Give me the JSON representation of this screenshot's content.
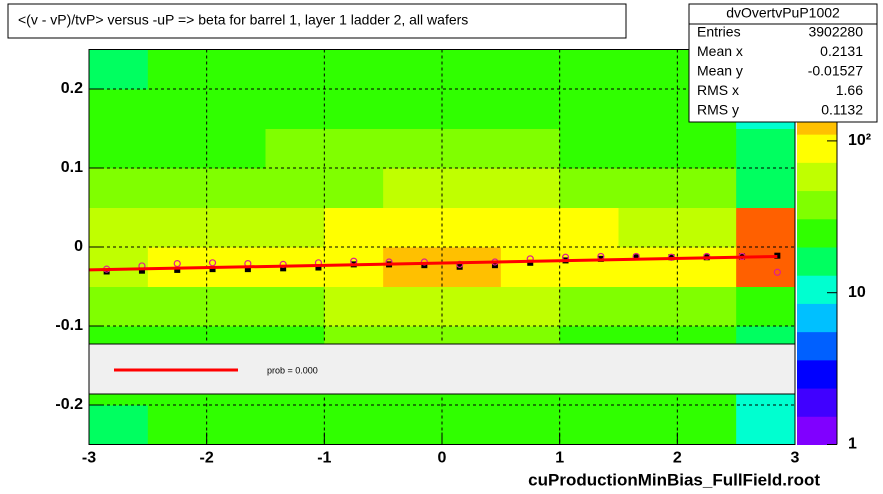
{
  "chart_data": {
    "type": "heatmap",
    "title": "<(v - vP)/tvP> versus  -uP => beta for barrel 1, layer 1 ladder 2, all wafers",
    "footer": "cuProductionMinBias_FullField.root",
    "xlim": [
      -3,
      3
    ],
    "ylim": [
      -0.25,
      0.25
    ],
    "xticks": [
      -3,
      -2,
      -1,
      0,
      1,
      2,
      3
    ],
    "yticks": [
      -0.2,
      -0.1,
      0,
      0.1,
      0.2
    ],
    "grid": true,
    "x_bins": [
      -3,
      -2.5,
      -2,
      -1.5,
      -1,
      -0.5,
      0,
      0.5,
      1,
      1.5,
      2,
      2.5,
      3
    ],
    "y_bins": [
      -0.25,
      -0.2,
      -0.15,
      -0.1,
      -0.05,
      0,
      0.05,
      0.1,
      0.15,
      0.2,
      0.25
    ],
    "z": [
      [
        18,
        20,
        22,
        22,
        24,
        26,
        26,
        24,
        22,
        22,
        20,
        10
      ],
      [
        22,
        24,
        26,
        26,
        28,
        30,
        30,
        28,
        26,
        24,
        22,
        12
      ],
      [
        26,
        28,
        30,
        30,
        34,
        38,
        38,
        34,
        30,
        28,
        26,
        14
      ],
      [
        34,
        36,
        40,
        42,
        50,
        60,
        60,
        52,
        44,
        40,
        36,
        20
      ],
      [
        70,
        80,
        85,
        90,
        110,
        140,
        140,
        110,
        95,
        90,
        80,
        250
      ],
      [
        55,
        60,
        65,
        70,
        85,
        110,
        110,
        90,
        75,
        70,
        60,
        200
      ],
      [
        32,
        34,
        38,
        40,
        46,
        55,
        55,
        48,
        42,
        38,
        34,
        18
      ],
      [
        26,
        28,
        30,
        32,
        34,
        38,
        38,
        34,
        30,
        28,
        26,
        14
      ],
      [
        22,
        24,
        26,
        26,
        28,
        30,
        30,
        28,
        26,
        24,
        22,
        12
      ],
      [
        18,
        20,
        22,
        22,
        24,
        26,
        26,
        24,
        22,
        22,
        20,
        10
      ]
    ],
    "zlim": [
      1,
      400
    ],
    "zlog": true,
    "zticks": [
      1,
      10,
      {
        "value": 100,
        "label": "10²"
      }
    ],
    "palette": [
      "#8000ff",
      "#4000ff",
      "#0000ff",
      "#0060ff",
      "#00c0ff",
      "#00ffd0",
      "#00ff60",
      "#30ff00",
      "#80ff00",
      "#c0ff00",
      "#ffff00",
      "#ffc000",
      "#ff6000",
      "#ff0000"
    ],
    "profiles": [
      {
        "color": "#000000",
        "marker": "square",
        "x": [
          -2.85,
          -2.55,
          -2.25,
          -1.95,
          -1.65,
          -1.35,
          -1.05,
          -0.75,
          -0.45,
          -0.15,
          0.15,
          0.45,
          0.75,
          1.05,
          1.35,
          1.65,
          1.95,
          2.25,
          2.55,
          2.85
        ],
        "values": [
          -0.031,
          -0.03,
          -0.029,
          -0.028,
          -0.028,
          -0.027,
          -0.026,
          -0.022,
          -0.022,
          -0.023,
          -0.025,
          -0.023,
          -0.02,
          -0.017,
          -0.015,
          -0.013,
          -0.013,
          -0.013,
          -0.012,
          -0.011
        ]
      },
      {
        "color": "#e0208c",
        "marker": "circle",
        "x": [
          -2.85,
          -2.55,
          -2.25,
          -1.95,
          -1.65,
          -1.35,
          -1.05,
          -0.75,
          -0.45,
          -0.15,
          0.15,
          0.45,
          0.75,
          1.05,
          1.35,
          1.65,
          1.95,
          2.25,
          2.55,
          2.85
        ],
        "values": [
          -0.028,
          -0.024,
          -0.021,
          -0.02,
          -0.021,
          -0.022,
          -0.02,
          -0.018,
          -0.019,
          -0.019,
          -0.022,
          -0.019,
          -0.015,
          -0.013,
          -0.012,
          -0.012,
          -0.013,
          -0.012,
          -0.012,
          -0.032
        ]
      }
    ],
    "fit_line": {
      "color": "#ff0000",
      "x": [
        -3,
        2.85
      ],
      "values": [
        -0.029,
        -0.012
      ]
    },
    "legend": {
      "text": "prob = 0.000"
    },
    "stats": {
      "title": "dvOvertvPuP1002",
      "rows": [
        {
          "label": "Entries",
          "value": 3902280
        },
        {
          "label": "Mean x",
          "value": 0.2131
        },
        {
          "label": "Mean y",
          "value": -0.01527
        },
        {
          "label": "RMS x",
          "value": 1.66
        },
        {
          "label": "RMS y",
          "value": 0.1132
        }
      ]
    }
  }
}
